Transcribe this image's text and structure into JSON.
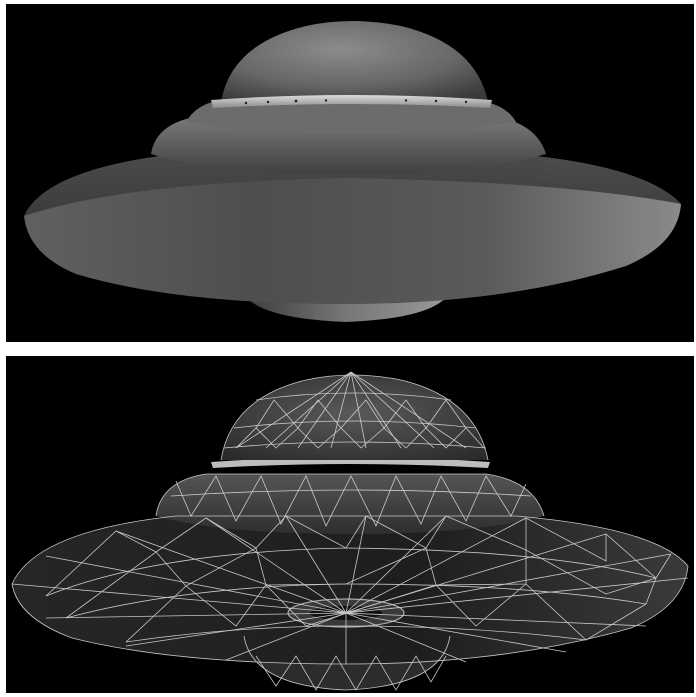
{
  "figure": {
    "panels": [
      {
        "id": "shaded",
        "render_style": "smooth-shaded",
        "subject": "flying-saucer-3d-model"
      },
      {
        "id": "wireframe",
        "render_style": "shaded-with-wireframe-overlay",
        "subject": "flying-saucer-3d-model"
      }
    ],
    "colors": {
      "background": "#000000",
      "page": "#ffffff",
      "hull_light": "#8f8f8f",
      "hull_dark": "#2a2a2a",
      "wire": "#d9d9d9"
    }
  }
}
